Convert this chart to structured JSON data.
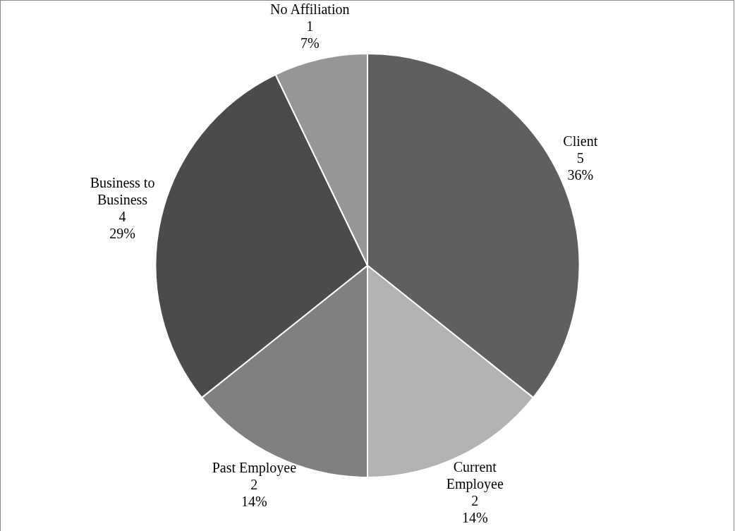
{
  "chart_data": {
    "type": "pie",
    "categories": [
      "Client",
      "Current Employee",
      "Past Employee",
      "Business to Business",
      "No Affiliation"
    ],
    "values": [
      5,
      2,
      2,
      4,
      1
    ],
    "colors": [
      "#5f5f5f",
      "#b2b2b2",
      "#808080",
      "#4b4b4b",
      "#969696"
    ],
    "value_labels": [
      "5\n36%",
      "2\n14%",
      "2\n14%",
      "4\n29%",
      "1\n7%"
    ],
    "legend": false
  }
}
